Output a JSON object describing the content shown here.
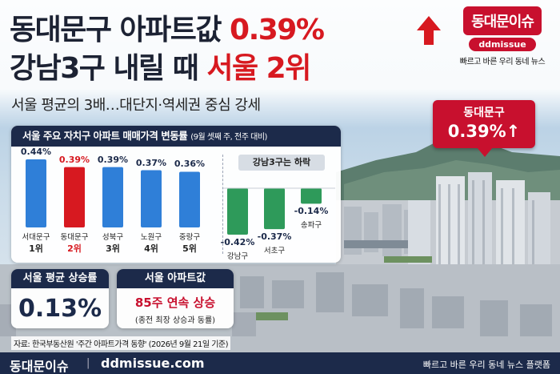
{
  "headline": {
    "line1_dark": "동대문구 아파트값 ",
    "line1_red": "0.39%",
    "line2_dark": "강남3구 내릴 때 ",
    "line2_red": "서울 2위",
    "subtitle": "서울 평균의 3배…대단지·역세권 중심 강세"
  },
  "logo": {
    "badge": "동대문이슈",
    "pill": "ddmissue",
    "tagline": "빠르고 바른 우리 동네 뉴스"
  },
  "callout": {
    "label": "동대문구",
    "value": "0.39%↑"
  },
  "chart_panel": {
    "title": "서울 주요 자치구 아파트 매매가격 변동률",
    "note": "(9월 셋째 주, 전주 대비)",
    "gangnam_label": "강남3구는 하락"
  },
  "chart_data": [
    {
      "type": "bar",
      "categories": [
        "서대문구",
        "동대문구",
        "성북구",
        "노원구",
        "중랑구"
      ],
      "values": [
        0.44,
        0.39,
        0.39,
        0.37,
        0.36
      ],
      "value_labels": [
        "0.44%",
        "0.39%",
        "0.39%",
        "0.37%",
        "0.36%"
      ],
      "ranks": [
        "1위",
        "2위",
        "3위",
        "4위",
        "5위"
      ],
      "highlight_index": 1,
      "colors": {
        "default": "#2f7fd8",
        "highlight": "#d71920"
      }
    },
    {
      "type": "bar",
      "title": "강남3구는 하락",
      "categories": [
        "강남구",
        "서초구",
        "송파구"
      ],
      "values": [
        -0.42,
        -0.37,
        -0.14
      ],
      "value_labels": [
        "-0.42%",
        "-0.37%",
        "-0.14%"
      ],
      "colors": {
        "default": "#2e9a5a"
      }
    }
  ],
  "cards": {
    "avg_title": "서울 평균 상승률",
    "avg_value": "0.13%",
    "streak_title": "서울 아파트값",
    "streak_value": "85주 연속 상승",
    "streak_sub": "(종전 최장 상승과 동률)"
  },
  "source": "자료: 한국부동산원 '주간 아파트가격 동향' (2026년 9월 21일 기준)",
  "footer": {
    "brand": "동대문이슈",
    "separator": "|",
    "url": "ddmissue.com",
    "tagline": "빠르고 바른 우리 동네 뉴스 플랫폼"
  },
  "colors": {
    "navy": "#1c2a4a",
    "red": "#c8102e",
    "blue": "#2f7fd8",
    "green": "#2e9a5a"
  }
}
